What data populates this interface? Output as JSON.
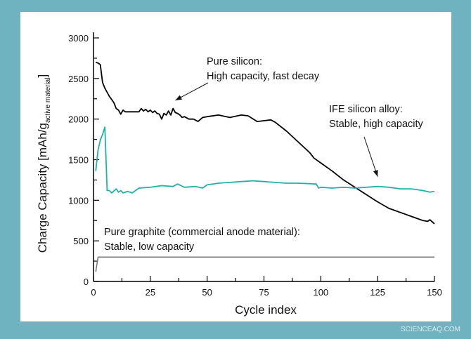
{
  "watermark": "SCIENCEAQ.COM",
  "colors": {
    "background": "#6fb3c0",
    "panel": "#ffffff",
    "silicon": "#000000",
    "alloy": "#20b2aa",
    "graphite": "#7a7a7a"
  },
  "chart_data": {
    "type": "line",
    "xlabel": "Cycle index",
    "ylabel_main": "Charge Capacity [mAh/g",
    "ylabel_sub": "active material",
    "ylabel_end": "]",
    "xlim": [
      0,
      150
    ],
    "ylim": [
      0,
      3000
    ],
    "xticks": [
      0,
      25,
      50,
      75,
      100,
      125,
      150
    ],
    "yticks": [
      0,
      500,
      1000,
      1500,
      2000,
      2500,
      3000
    ],
    "grid": false,
    "annotations": [
      {
        "lines": [
          "Pure silicon:",
          "High capacity, fast decay"
        ],
        "points_to": [
          36,
          2110
        ]
      },
      {
        "lines": [
          "IFE silicon alloy:",
          "Stable, high capacity"
        ],
        "points_to": [
          125,
          1170
        ]
      },
      {
        "lines": [
          "Pure graphite (commercial anode material):",
          "Stable, low capacity"
        ]
      }
    ],
    "series": [
      {
        "id": "silicon",
        "color": "#000000",
        "x": [
          1,
          2,
          3,
          4,
          5,
          6,
          7,
          8,
          9,
          10,
          11,
          12,
          13,
          14,
          16,
          18,
          20,
          21,
          22,
          23,
          24,
          25,
          26,
          27,
          28,
          29,
          30,
          31,
          32,
          33,
          34,
          35,
          36,
          37,
          38,
          39,
          40,
          42,
          44,
          46,
          48,
          50,
          55,
          60,
          65,
          68,
          72,
          75,
          78,
          80,
          85,
          90,
          95,
          97,
          100,
          105,
          110,
          115,
          120,
          125,
          130,
          135,
          140,
          145,
          147,
          148,
          150
        ],
        "y": [
          2700,
          2690,
          2670,
          2450,
          2380,
          2330,
          2280,
          2240,
          2200,
          2130,
          2110,
          2060,
          2110,
          2090,
          2090,
          2090,
          2090,
          2130,
          2100,
          2120,
          2090,
          2110,
          2080,
          2100,
          2070,
          2060,
          2000,
          2070,
          2050,
          2100,
          2050,
          2130,
          2080,
          2070,
          2050,
          2020,
          2030,
          2000,
          2000,
          1970,
          2020,
          2030,
          2050,
          2020,
          2050,
          2040,
          1970,
          1980,
          1990,
          1960,
          1850,
          1720,
          1590,
          1520,
          1460,
          1360,
          1250,
          1160,
          1070,
          980,
          900,
          850,
          800,
          750,
          740,
          760,
          710
        ]
      },
      {
        "id": "alloy",
        "color": "#20b2aa",
        "x": [
          1,
          2,
          3,
          4,
          5,
          6,
          7,
          8,
          10,
          11,
          12,
          13,
          15,
          17,
          20,
          25,
          30,
          35,
          37,
          40,
          45,
          48,
          50,
          55,
          60,
          65,
          70,
          75,
          80,
          85,
          90,
          98,
          99,
          100,
          105,
          110,
          115,
          120,
          125,
          130,
          135,
          140,
          145,
          148,
          150
        ],
        "y": [
          1360,
          1620,
          1740,
          1810,
          1900,
          1120,
          1120,
          1090,
          1140,
          1100,
          1120,
          1090,
          1110,
          1090,
          1150,
          1160,
          1180,
          1170,
          1200,
          1160,
          1170,
          1150,
          1190,
          1210,
          1220,
          1230,
          1240,
          1230,
          1220,
          1210,
          1210,
          1200,
          1150,
          1160,
          1150,
          1160,
          1150,
          1160,
          1170,
          1160,
          1140,
          1140,
          1120,
          1100,
          1110
        ]
      },
      {
        "id": "graphite",
        "color": "#7a7a7a",
        "x": [
          1,
          2,
          150
        ],
        "y": [
          120,
          300,
          300
        ]
      }
    ]
  }
}
